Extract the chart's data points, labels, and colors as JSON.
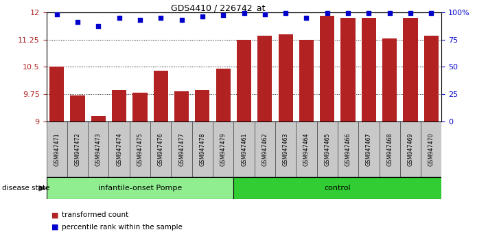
{
  "title": "GDS4410 / 226742_at",
  "samples": [
    "GSM947471",
    "GSM947472",
    "GSM947473",
    "GSM947474",
    "GSM947475",
    "GSM947476",
    "GSM947477",
    "GSM947478",
    "GSM947479",
    "GSM947461",
    "GSM947462",
    "GSM947463",
    "GSM947464",
    "GSM947465",
    "GSM947466",
    "GSM947467",
    "GSM947468",
    "GSM947469",
    "GSM947470"
  ],
  "bar_values": [
    10.5,
    9.72,
    9.15,
    9.87,
    9.8,
    10.4,
    9.83,
    9.87,
    10.45,
    11.25,
    11.36,
    11.4,
    11.25,
    11.9,
    11.85,
    11.85,
    11.27,
    11.85,
    11.36
  ],
  "dot_values": [
    98,
    91,
    87,
    95,
    93,
    95,
    93,
    96,
    97,
    99,
    98,
    99,
    95,
    99,
    99,
    99,
    99,
    99,
    99
  ],
  "bar_color": "#b22222",
  "dot_color": "#0000cc",
  "ylim_left": [
    9.0,
    12.0
  ],
  "ylim_right": [
    0,
    100
  ],
  "yticks_left": [
    9.0,
    9.75,
    10.5,
    11.25,
    12.0
  ],
  "ytick_labels_left": [
    "9",
    "9.75",
    "10.5",
    "11.25",
    "12"
  ],
  "yticks_right": [
    0,
    25,
    50,
    75,
    100
  ],
  "ytick_labels_right": [
    "0",
    "25",
    "50",
    "75",
    "100%"
  ],
  "group1_label": "infantile-onset Pompe",
  "group2_label": "control",
  "group1_count": 9,
  "group2_count": 10,
  "group1_color": "#90ee90",
  "group2_color": "#32cd32",
  "disease_state_label": "disease state",
  "legend_bar_label": "transformed count",
  "legend_dot_label": "percentile rank within the sample",
  "plot_bg_color": "#ffffff",
  "xtick_box_color": "#c8c8c8",
  "xtick_box_edge": "#888888"
}
